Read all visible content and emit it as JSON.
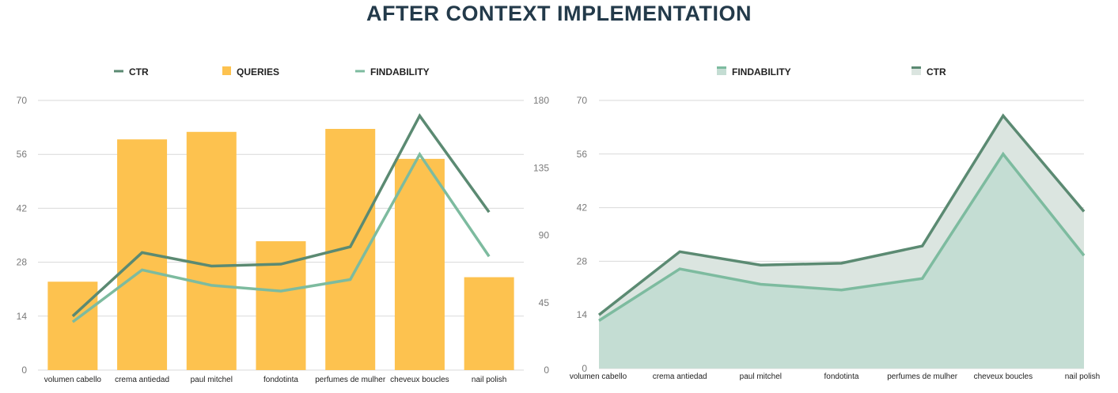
{
  "title": "AFTER CONTEXT IMPLEMENTATION",
  "colors": {
    "ctr": "#5b8a72",
    "findability": "#7dbb9f",
    "queries": "#fdc24f",
    "area_findability": "#c4ddd3",
    "area_ctr": "#dbe5e0",
    "grid": "#d9d9d9"
  },
  "chart_data": [
    {
      "type": "bar+line",
      "categories": [
        "volumen cabello",
        "crema antiedad",
        "paul mitchel",
        "fondotinta",
        "perfumes de mulher",
        "cheveux boucles",
        "nail polish"
      ],
      "legend": [
        "CTR",
        "QUERIES",
        "FINDABILITY"
      ],
      "legend_position": "top",
      "grid": true,
      "left_axis": {
        "ticks": [
          "0",
          "14",
          "28",
          "42",
          "56",
          "70"
        ],
        "range": [
          0,
          70
        ]
      },
      "right_axis": {
        "ticks": [
          "0",
          "45",
          "90",
          "135",
          "180"
        ],
        "range": [
          0,
          180
        ]
      },
      "series": [
        {
          "name": "QUERIES",
          "type": "bar",
          "axis": "right",
          "values": [
            59,
            154,
            159,
            86,
            161,
            141,
            62
          ]
        },
        {
          "name": "CTR",
          "type": "line",
          "axis": "left",
          "values": [
            14,
            30.5,
            27,
            27.5,
            32,
            66,
            41
          ]
        },
        {
          "name": "FINDABILITY",
          "type": "line",
          "axis": "left",
          "values": [
            12.5,
            26,
            22,
            20.5,
            23.5,
            56,
            29.5
          ]
        }
      ]
    },
    {
      "type": "area",
      "categories": [
        "volumen cabello",
        "crema antiedad",
        "paul mitchel",
        "fondotinta",
        "perfumes de mulher",
        "cheveux boucles",
        "nail polish"
      ],
      "legend": [
        "FINDABILITY",
        "CTR"
      ],
      "legend_position": "top",
      "grid": true,
      "left_axis": {
        "ticks": [
          "0",
          "14",
          "28",
          "42",
          "56",
          "70"
        ],
        "range": [
          0,
          70
        ]
      },
      "series": [
        {
          "name": "CTR",
          "values": [
            14,
            30.5,
            27,
            27.5,
            32,
            66,
            41
          ]
        },
        {
          "name": "FINDABILITY",
          "values": [
            12.5,
            26,
            22,
            20.5,
            23.5,
            56,
            29.5
          ]
        }
      ]
    }
  ]
}
